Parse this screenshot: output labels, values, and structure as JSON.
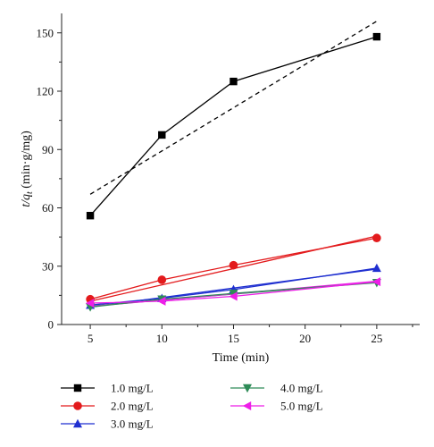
{
  "chart_data": {
    "type": "line",
    "xlabel": "Time (min)",
    "ylabel": "t/q_t (min·g/mg)",
    "ylabel_main": "t/q",
    "ylabel_sub": "t",
    "ylabel_units": " (min·g/mg)",
    "xlim": [
      3,
      28
    ],
    "ylim": [
      0,
      160
    ],
    "x_ticks": [
      5,
      10,
      15,
      20,
      25
    ],
    "y_ticks": [
      0,
      30,
      60,
      90,
      120,
      150
    ],
    "grid": false,
    "legend_position": "bottom",
    "x": [
      5,
      10,
      15,
      25
    ],
    "series": [
      {
        "name": "1.0 mg/L",
        "color": "#000000",
        "marker": "square",
        "values": [
          56,
          97.5,
          125,
          148
        ],
        "fit": [
          67,
          156
        ],
        "fit_style": "dashed"
      },
      {
        "name": "2.0 mg/L",
        "color": "#e31a1c",
        "marker": "circle",
        "values": [
          13,
          23,
          30.5,
          44.5
        ],
        "fit": [
          12,
          45.5
        ],
        "fit_style": "solid"
      },
      {
        "name": "3.0 mg/L",
        "color": "#1f2fd0",
        "marker": "triangle-up",
        "values": [
          10,
          13.5,
          18,
          29
        ],
        "fit": [
          9,
          28.5
        ],
        "fit_style": "solid"
      },
      {
        "name": "4.0 mg/L",
        "color": "#2e8b57",
        "marker": "triangle-down",
        "values": [
          9,
          13,
          16,
          21.5
        ],
        "fit": [
          9.5,
          21.8
        ],
        "fit_style": "solid"
      },
      {
        "name": "5.0 mg/L",
        "color": "#ee1ee8",
        "marker": "triangle-left",
        "values": [
          11,
          12,
          14.5,
          22
        ],
        "fit": [
          9.3,
          22.3
        ],
        "fit_style": "solid"
      }
    ]
  }
}
